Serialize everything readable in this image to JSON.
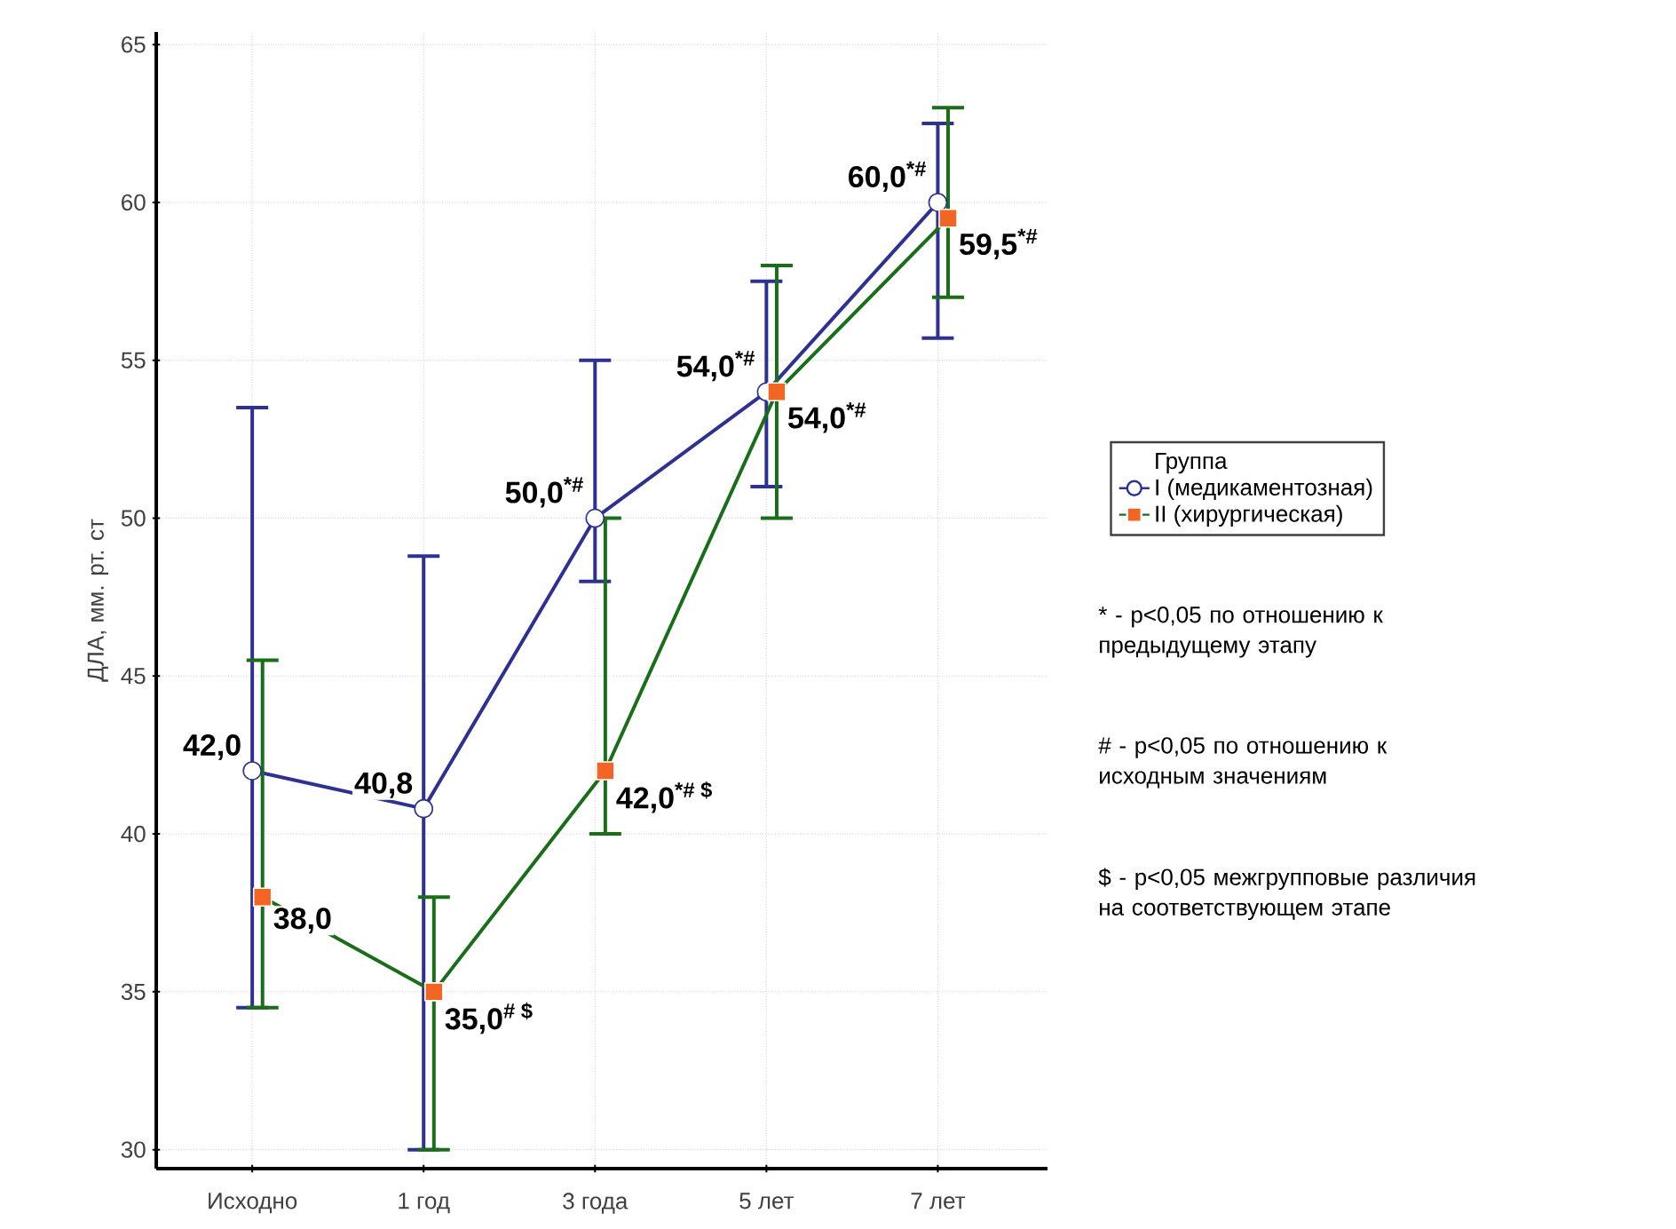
{
  "chart_data": {
    "type": "line",
    "ylabel": "ДЛА, мм. рт. ст",
    "categories": [
      "Исходно",
      "1 год",
      "3 года",
      "5 лет",
      "7 лет"
    ],
    "series": [
      {
        "name": "I (медикаментозная)",
        "color": "#2e3192",
        "marker": "circle",
        "values": [
          42.0,
          40.8,
          50.0,
          54.0,
          60.0
        ],
        "errors": [
          [
            34.5,
            53.5
          ],
          [
            30,
            48.8
          ],
          [
            48,
            55
          ],
          [
            51,
            57.5
          ],
          [
            55.7,
            62.5
          ]
        ],
        "value_labels": [
          "42,0",
          "40,8",
          "50,0$^{*#}$",
          "54,0$^{*#}$",
          "60,0$^{*#}$"
        ]
      },
      {
        "name": "II (хирургическая)",
        "color": "#1a6e1a",
        "marker": "square",
        "values": [
          38.0,
          35.0,
          42.0,
          54.0,
          59.5
        ],
        "errors": [
          [
            34.5,
            45.5
          ],
          [
            30,
            38
          ],
          [
            40,
            50
          ],
          [
            50,
            58
          ],
          [
            57,
            63
          ]
        ],
        "value_labels": [
          "38,0",
          "35,0$^{# $}$",
          "42,0$^{*# $}$",
          "54,0$^{*#}$",
          "59,5$^{*#}$"
        ]
      }
    ],
    "ylim": [
      29.4,
      65.4
    ],
    "yticks": [
      30,
      35,
      40,
      45,
      50,
      55,
      60,
      65
    ],
    "grid": true,
    "legend": "right",
    "legend_title": "Группа",
    "line_style": "solid",
    "annotations": [
      "* - p<0,05 по отношению к предыдущему этапу",
      "# - p<0,05 по отношению к исходным значениям",
      "$ - p<0,05 межгрупповые различия на соответствующем этапе"
    ]
  }
}
